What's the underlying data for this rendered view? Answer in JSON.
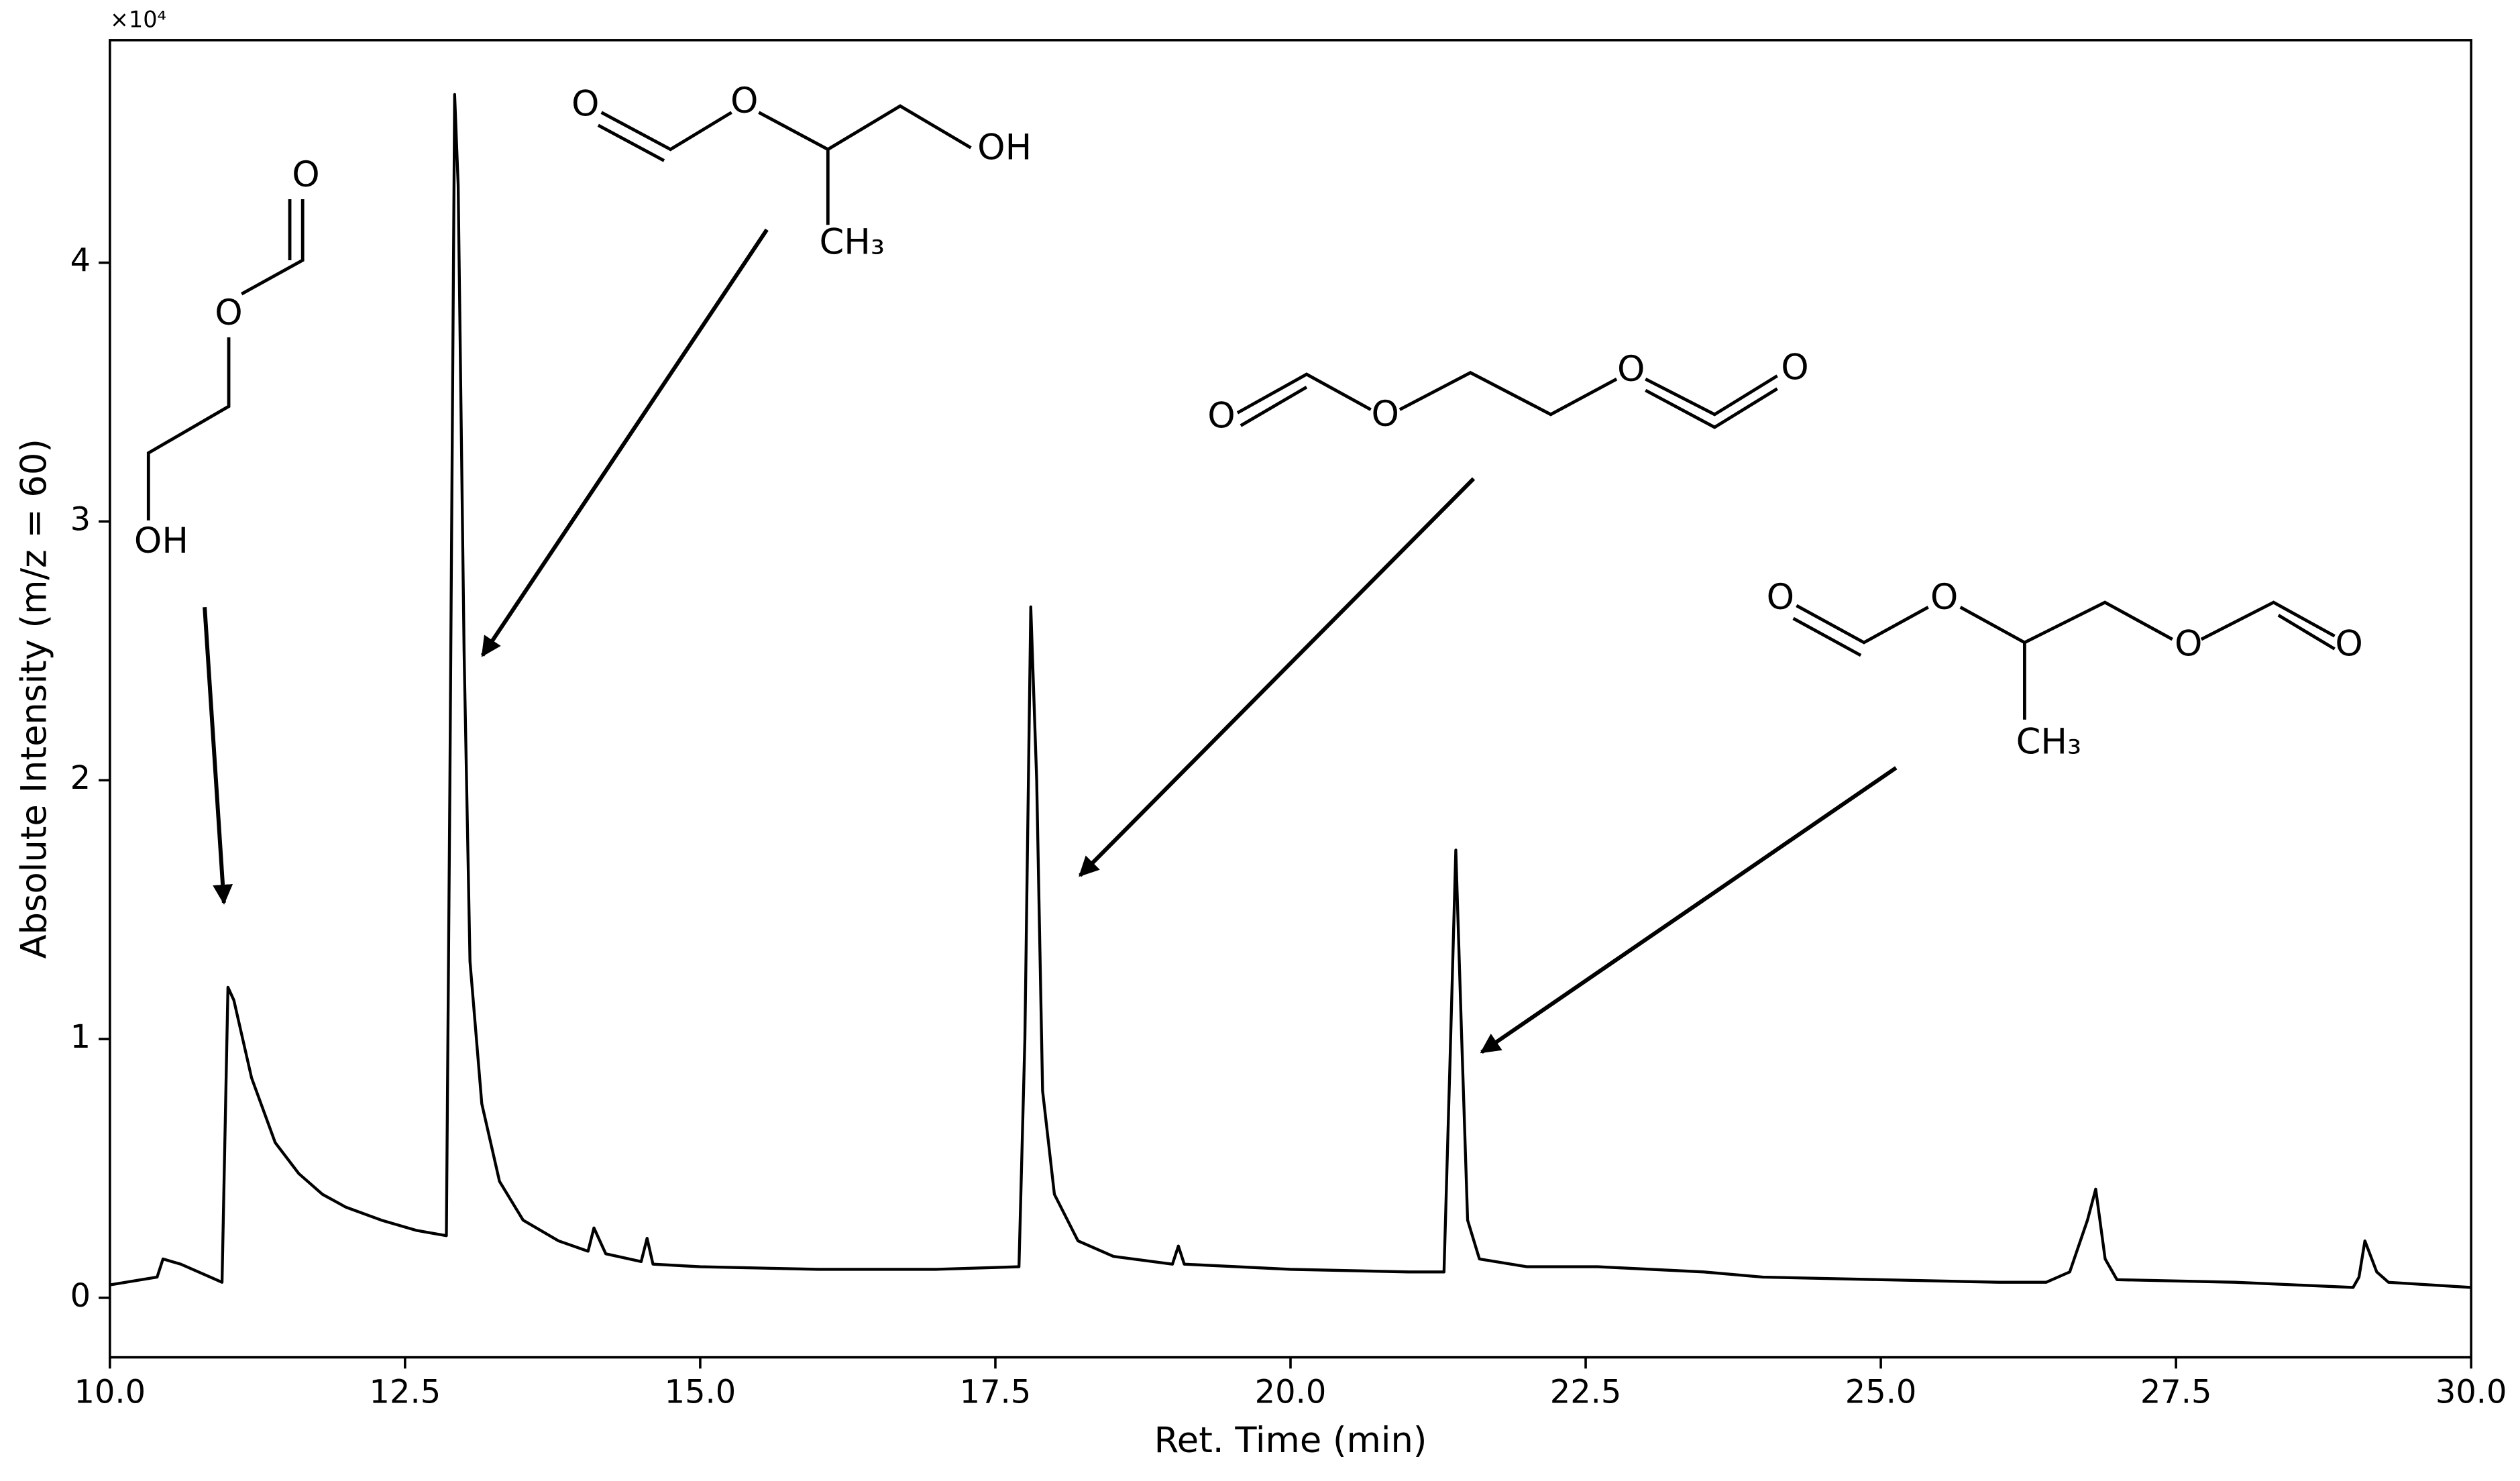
{
  "chart_data": {
    "type": "line",
    "xlabel": "Ret. Time (min)",
    "ylabel": "Absolute Intensity (m/z = 60)",
    "y_offset_label": "×10⁴",
    "xlim": [
      10,
      30
    ],
    "ylim": [
      -0.23,
      4.86
    ],
    "xticks": [
      {
        "value": 10,
        "label": "10.0"
      },
      12.5,
      {
        "value": 15,
        "label": "15.0"
      },
      17.5,
      {
        "value": 20,
        "label": "20.0"
      },
      22.5,
      {
        "value": 25,
        "label": "25.0"
      },
      27.5,
      {
        "value": 30,
        "label": "30.0"
      }
    ],
    "yticks": [
      0,
      1,
      2,
      3,
      4
    ],
    "grid": false,
    "x": [
      10.0,
      10.4,
      10.45,
      10.6,
      10.9,
      10.95,
      11.0,
      11.05,
      11.2,
      11.4,
      11.6,
      11.8,
      12.0,
      12.3,
      12.6,
      12.85,
      12.88,
      12.92,
      12.95,
      13.0,
      13.05,
      13.15,
      13.3,
      13.5,
      13.8,
      14.05,
      14.1,
      14.2,
      14.5,
      14.55,
      14.6,
      15.0,
      16.0,
      17.0,
      17.7,
      17.75,
      17.8,
      17.85,
      17.9,
      18.0,
      18.2,
      18.5,
      19.0,
      19.05,
      19.1,
      20.0,
      21.0,
      21.3,
      21.35,
      21.4,
      21.45,
      21.5,
      21.6,
      22.0,
      22.6,
      23.5,
      24.0,
      25.0,
      26.0,
      26.4,
      26.6,
      26.75,
      26.82,
      26.9,
      27.0,
      28.0,
      29.0,
      29.05,
      29.1,
      29.2,
      29.3,
      30.0
    ],
    "series": [
      {
        "color": "#000000",
        "values": [
          0.05,
          0.08,
          0.15,
          0.13,
          0.07,
          0.06,
          1.2,
          1.15,
          0.85,
          0.6,
          0.48,
          0.4,
          0.35,
          0.3,
          0.26,
          0.24,
          2.0,
          4.65,
          4.3,
          2.5,
          1.3,
          0.75,
          0.45,
          0.3,
          0.22,
          0.18,
          0.27,
          0.17,
          0.14,
          0.23,
          0.13,
          0.12,
          0.11,
          0.11,
          0.12,
          1.0,
          2.67,
          2.0,
          0.8,
          0.4,
          0.22,
          0.16,
          0.13,
          0.2,
          0.13,
          0.11,
          0.1,
          0.1,
          0.9,
          1.73,
          1.0,
          0.3,
          0.15,
          0.12,
          0.12,
          0.1,
          0.08,
          0.07,
          0.06,
          0.06,
          0.1,
          0.3,
          0.42,
          0.15,
          0.07,
          0.06,
          0.04,
          0.08,
          0.22,
          0.1,
          0.06,
          0.04
        ]
      }
    ],
    "annotations": [
      {
        "atoms": [
          "OH",
          "O",
          "O"
        ]
      },
      {
        "atoms": [
          "O",
          "O",
          "OH",
          "CH₃"
        ]
      },
      {
        "atoms": [
          "O",
          "O",
          "O",
          "O"
        ]
      },
      {
        "atoms": [
          "O",
          "O",
          "O",
          "O",
          "CH₃"
        ]
      }
    ]
  }
}
